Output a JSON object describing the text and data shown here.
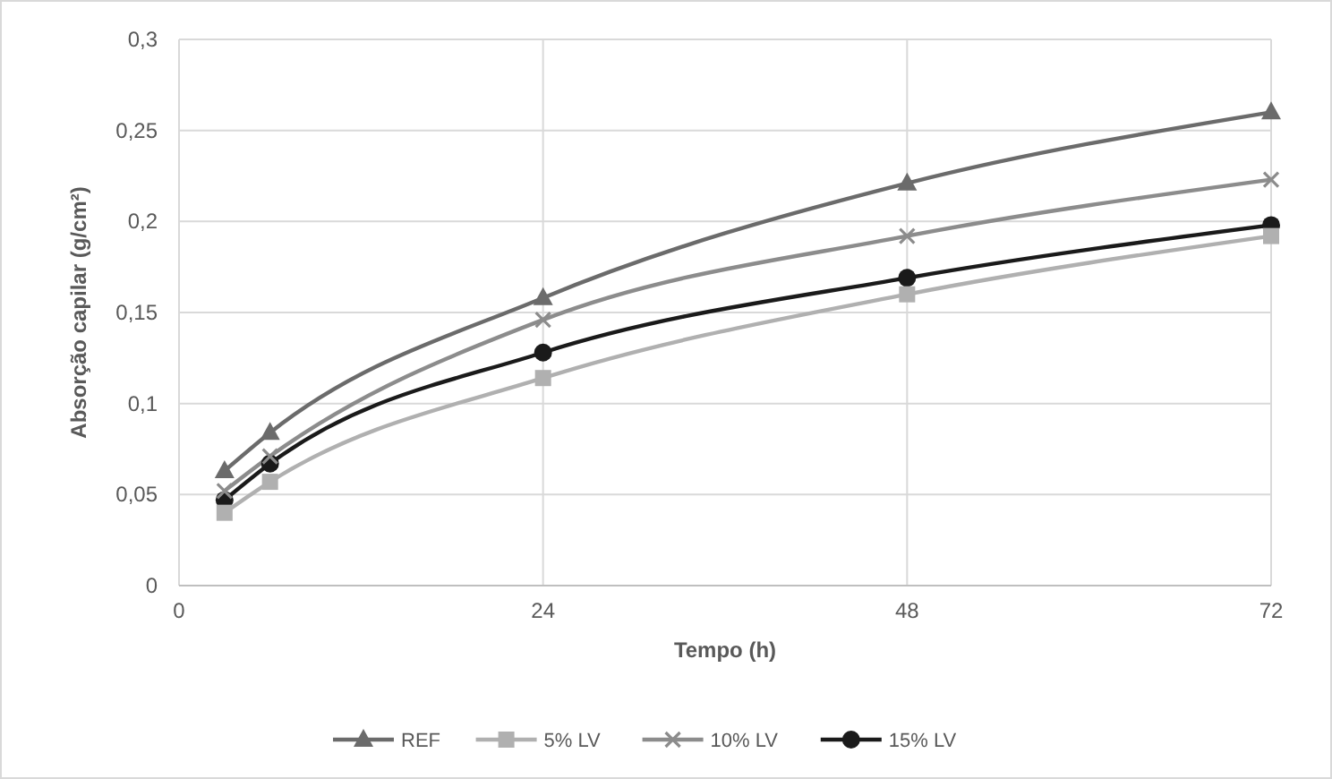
{
  "chart_data": {
    "type": "line",
    "xlabel": "Tempo (h)",
    "ylabel": "Absorção capilar (g/cm²)",
    "x": [
      3,
      6,
      24,
      48,
      72
    ],
    "series": [
      {
        "name": "REF",
        "color": "#6b6b6b",
        "marker": "triangle",
        "values": [
          0.063,
          0.084,
          0.158,
          0.221,
          0.26
        ]
      },
      {
        "name": "5% LV",
        "color": "#b0b0b0",
        "marker": "square",
        "values": [
          0.04,
          0.057,
          0.114,
          0.16,
          0.192
        ]
      },
      {
        "name": "10% LV",
        "color": "#8c8c8c",
        "marker": "cross",
        "values": [
          0.052,
          0.071,
          0.146,
          0.192,
          0.223
        ]
      },
      {
        "name": "15% LV",
        "color": "#1a1a1a",
        "marker": "circle",
        "values": [
          0.047,
          0.067,
          0.128,
          0.169,
          0.198
        ]
      }
    ],
    "xlim": [
      0,
      72
    ],
    "xticks": [
      0,
      24,
      48,
      72
    ],
    "ylim": [
      0,
      0.3
    ],
    "yticks": [
      0,
      {
        "value": 0.05,
        "label": "0,05"
      },
      {
        "value": 0.1,
        "label": "0,1"
      },
      {
        "value": 0.15,
        "label": "0,15"
      },
      {
        "value": 0.2,
        "label": "0,2"
      },
      {
        "value": 0.25,
        "label": "0,25"
      },
      {
        "value": 0.3,
        "label": "0,3"
      }
    ],
    "grid": true,
    "legend": "bottom",
    "line_style": "solid"
  }
}
